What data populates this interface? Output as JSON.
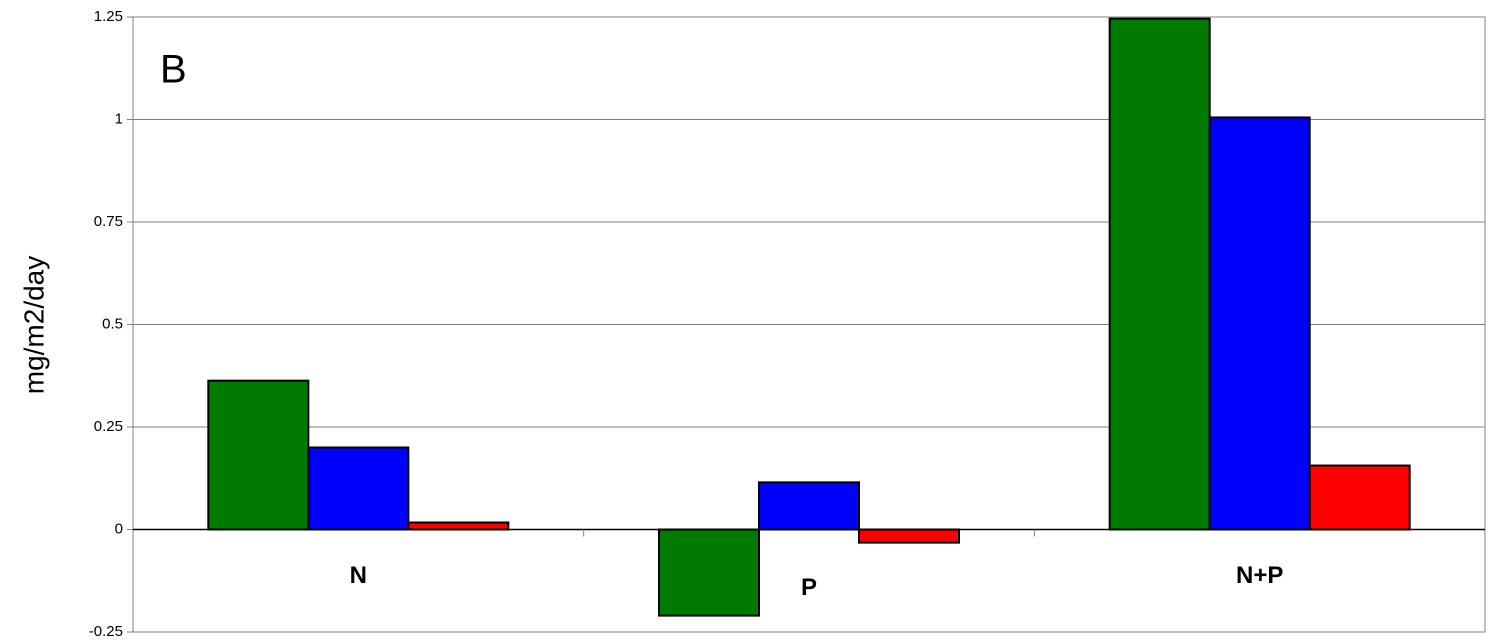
{
  "chart_data": {
    "type": "bar",
    "annotation": "B",
    "y_label": "mg/m2/day",
    "categories": [
      "N",
      "P",
      "N+P"
    ],
    "series": [
      {
        "color": "#007a00",
        "values": [
          0.363,
          -0.21,
          1.246
        ]
      },
      {
        "color": "#0000ff",
        "values": [
          0.2,
          0.115,
          1.005
        ]
      },
      {
        "color": "#ff0000",
        "values": [
          0.017,
          -0.032,
          0.156
        ]
      }
    ],
    "ylim": [
      -0.25,
      1.25
    ],
    "yticks": [
      -0.25,
      0,
      0.25,
      0.5,
      0.75,
      1,
      1.25
    ],
    "grid": true
  }
}
